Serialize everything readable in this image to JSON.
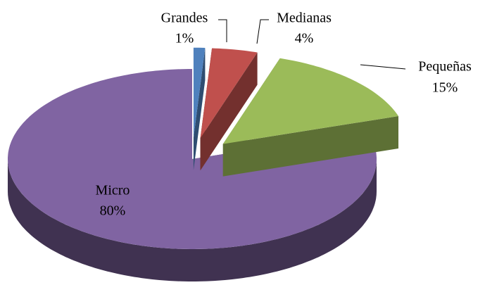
{
  "chart_data": {
    "type": "pie",
    "categories": [
      "Grandes",
      "Medianas",
      "Pequeñas",
      "Micro"
    ],
    "values": [
      1,
      4,
      15,
      80
    ],
    "value_labels": [
      "1%",
      "4%",
      "15%",
      "80%"
    ],
    "colors": [
      "#4f81bd",
      "#c0504d",
      "#9bbb59",
      "#8064a2"
    ]
  }
}
